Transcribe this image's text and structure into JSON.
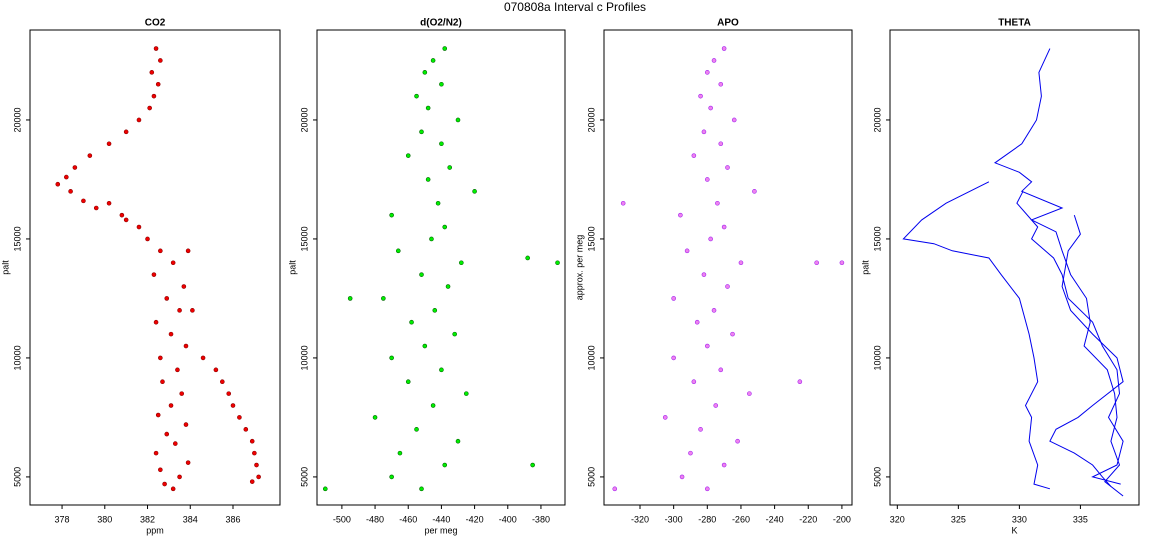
{
  "title": "070808a   Interval c Profiles",
  "chart_data": [
    {
      "type": "scatter",
      "title": "CO2",
      "xlabel": "ppm",
      "ylabel": "palt",
      "xlim": [
        376.5,
        388.2
      ],
      "ylim": [
        3820,
        23780
      ],
      "xticks": [
        378,
        380,
        382,
        384,
        386
      ],
      "yticks": [
        5000,
        10000,
        15000,
        20000
      ],
      "series": [
        {
          "color": "#ee0000",
          "edgecolor": "#8b0000",
          "x": [
            383.2,
            382.8,
            383.5,
            382.6,
            383.9,
            382.4,
            383.3,
            382.9,
            383.8,
            382.5,
            383.1,
            383.6,
            382.7,
            383.4,
            382.6,
            383.8,
            383.1,
            382.4,
            383.5,
            382.9,
            383.7,
            382.3,
            383.2,
            382.6,
            382.0,
            381.6,
            380.8,
            379.6,
            379.0,
            378.4,
            377.8,
            378.2,
            378.6,
            379.3,
            380.2,
            381.0,
            381.6,
            382.1,
            382.3,
            382.5,
            382.2,
            382.6,
            382.4,
            384.6,
            385.2,
            385.5,
            385.8,
            386.0,
            386.3,
            386.6,
            386.9,
            387.0,
            387.1,
            387.2,
            386.9,
            380.2,
            381.0,
            383.9,
            384.1
          ],
          "y": [
            4500,
            4700,
            5000,
            5300,
            5600,
            6000,
            6400,
            6800,
            7200,
            7600,
            8000,
            8500,
            9000,
            9500,
            10000,
            10500,
            11000,
            11500,
            12000,
            12500,
            13000,
            13500,
            14000,
            14500,
            15000,
            15500,
            16000,
            16300,
            16600,
            17000,
            17300,
            17600,
            18000,
            18500,
            19000,
            19500,
            20000,
            20500,
            21000,
            21500,
            22000,
            22500,
            23000,
            10000,
            9500,
            9000,
            8500,
            8000,
            7500,
            7000,
            6500,
            6000,
            5500,
            5000,
            4800,
            16500,
            15800,
            14500,
            12000
          ]
        }
      ]
    },
    {
      "type": "scatter",
      "title": "d(O2/N2)",
      "xlabel": "per meg",
      "ylabel": "palt",
      "xlim": [
        -515,
        -365.5
      ],
      "ylim": [
        3820,
        23780
      ],
      "xticks": [
        -500,
        -480,
        -460,
        -440,
        -420,
        -400,
        -380
      ],
      "yticks": [
        5000,
        10000,
        15000,
        20000
      ],
      "series": [
        {
          "color": "#00ee00",
          "edgecolor": "#006400",
          "x": [
            -452,
            -470,
            -438,
            -465,
            -430,
            -455,
            -480,
            -445,
            -425,
            -460,
            -440,
            -470,
            -450,
            -432,
            -458,
            -444,
            -475,
            -436,
            -452,
            -428,
            -466,
            -446,
            -438,
            -470,
            -442,
            -420,
            -448,
            -435,
            -460,
            -440,
            -452,
            -430,
            -448,
            -455,
            -440,
            -450,
            -445,
            -438,
            -510,
            -370,
            -388,
            -495,
            -385
          ],
          "y": [
            4500,
            5000,
            5500,
            6000,
            6500,
            7000,
            7500,
            8000,
            8500,
            9000,
            9500,
            10000,
            10500,
            11000,
            11500,
            12000,
            12500,
            13000,
            13500,
            14000,
            14500,
            15000,
            15500,
            16000,
            16500,
            17000,
            17500,
            18000,
            18500,
            19000,
            19500,
            20000,
            20500,
            21000,
            21500,
            22000,
            22500,
            23000,
            4500,
            14000,
            14200,
            12500,
            5500
          ]
        }
      ]
    },
    {
      "type": "scatter",
      "title": "APO",
      "ylabel": "approx. per meg",
      "xlim": [
        -341.4,
        -194
      ],
      "ylim": [
        3820,
        23780
      ],
      "xticks": [
        -320,
        -300,
        -280,
        -260,
        -240,
        -220,
        -200
      ],
      "yticks": [
        5000,
        10000,
        15000,
        20000
      ],
      "series": [
        {
          "color": "#ee82ee",
          "edgecolor": "#a020f0",
          "x": [
            -280,
            -295,
            -270,
            -290,
            -262,
            -284,
            -305,
            -275,
            -255,
            -288,
            -272,
            -300,
            -280,
            -265,
            -286,
            -276,
            -300,
            -268,
            -282,
            -260,
            -292,
            -278,
            -270,
            -296,
            -274,
            -252,
            -280,
            -268,
            -288,
            -272,
            -282,
            -264,
            -278,
            -284,
            -272,
            -280,
            -276,
            -270,
            -335,
            -200,
            -330,
            -215,
            -225
          ],
          "y": [
            4500,
            5000,
            5500,
            6000,
            6500,
            7000,
            7500,
            8000,
            8500,
            9000,
            9500,
            10000,
            10500,
            11000,
            11500,
            12000,
            12500,
            13000,
            13500,
            14000,
            14500,
            15000,
            15500,
            16000,
            16500,
            17000,
            17500,
            18000,
            18500,
            19000,
            19500,
            20000,
            20500,
            21000,
            21500,
            22000,
            22500,
            23000,
            4500,
            14000,
            16500,
            14000,
            9000
          ]
        }
      ]
    },
    {
      "type": "line",
      "title": "THETA",
      "xlabel": "K",
      "ylabel": "palt",
      "xlim": [
        319.4,
        339.8
      ],
      "ylim": [
        3820,
        23780
      ],
      "xticks": [
        320,
        325,
        330,
        335
      ],
      "yticks": [
        5000,
        10000,
        15000,
        20000
      ],
      "series": [
        {
          "color": "#0000ee",
          "x": [
            332.5,
            331.6,
            331.8,
            331.4,
            330.2,
            328.0,
            330.0,
            331.0,
            330.2,
            333.5,
            331.0,
            333.0,
            333.5,
            334.2,
            335.5,
            335.8,
            335.3,
            337.2,
            337.8,
            338.0,
            337.5,
            338.2,
            337.0,
            338.5
          ],
          "y": [
            23000,
            22000,
            21000,
            20000,
            19000,
            18200,
            17800,
            17400,
            17000,
            16300,
            15800,
            15300,
            14500,
            13500,
            12500,
            11500,
            10500,
            9500,
            8500,
            7500,
            6500,
            5500,
            4800,
            4200
          ]
        },
        {
          "color": "#0000ee",
          "x": [
            327.5,
            324.0,
            322.0,
            320.5,
            323.0,
            324.5,
            327.5,
            328.5,
            330.0,
            330.8,
            331.2,
            331.5,
            330.5,
            331.0,
            330.8,
            331.5,
            331.2,
            332.5
          ],
          "y": [
            17400,
            16500,
            15800,
            15000,
            14800,
            14500,
            14200,
            13500,
            12500,
            11000,
            10000,
            9000,
            8000,
            7500,
            6500,
            5500,
            4700,
            4500
          ]
        },
        {
          "color": "#0000ee",
          "x": [
            330.3,
            329.8,
            331.5,
            331.0,
            332.8,
            333.5,
            334.0,
            336.0,
            336.8,
            338.0,
            338.2,
            337.3,
            338.5,
            338.0,
            336.0,
            338.3
          ],
          "y": [
            17000,
            16500,
            15500,
            15000,
            14200,
            13500,
            12500,
            11500,
            10500,
            9500,
            8500,
            7500,
            6500,
            5500,
            5000,
            4700
          ]
        },
        {
          "color": "#0000ee",
          "x": [
            334.5,
            335.0,
            334.0,
            333.5,
            334.2,
            336.0,
            338.0,
            338.5,
            336.0,
            334.8,
            333.0,
            332.5,
            334.5,
            336.0,
            336.8,
            337.5
          ],
          "y": [
            16000,
            15200,
            14500,
            13000,
            12000,
            11000,
            10000,
            9000,
            8000,
            7500,
            7000,
            6500,
            6000,
            5500,
            5000,
            4600
          ]
        }
      ]
    }
  ]
}
